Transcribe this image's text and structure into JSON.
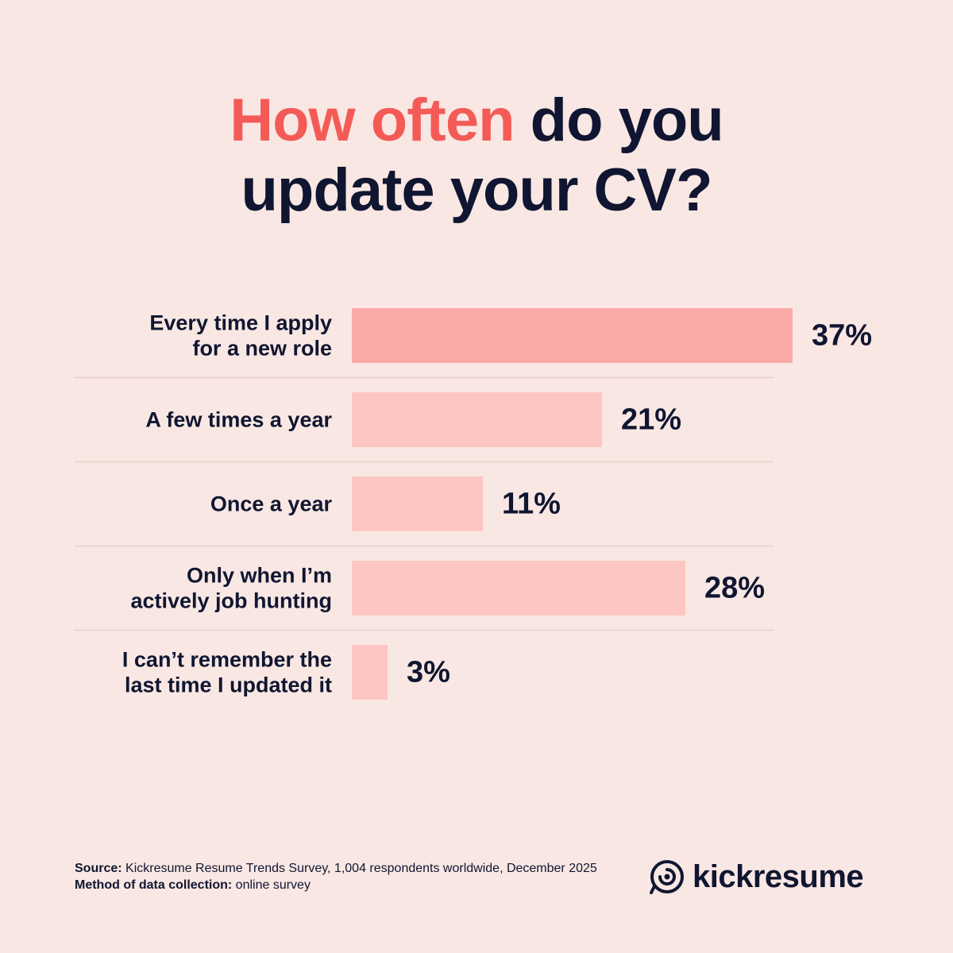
{
  "title": {
    "part1": "How often",
    "part2": "do you",
    "part3": "update your CV?"
  },
  "colors": {
    "background": "#f9e7e3",
    "title_accent": "#f45b57",
    "text": "#101631",
    "bar_highlight": "#fca9a9",
    "bar_default": "#fdc6c3",
    "divider": "#e8cfca"
  },
  "chart_data": {
    "type": "bar",
    "orientation": "horizontal",
    "categories": [
      [
        "Every time I apply",
        "for a new role"
      ],
      [
        "A few times a year"
      ],
      [
        "Once a year"
      ],
      [
        "Only when I’m",
        "actively job hunting"
      ],
      [
        "I can’t remember the",
        "last time I updated it"
      ]
    ],
    "values": [
      37,
      21,
      11,
      28,
      3
    ],
    "value_labels": [
      "37%",
      "21%",
      "11%",
      "28%",
      "3%"
    ],
    "highlight_index": 0,
    "grid": false
  },
  "footer": {
    "source_label": "Source:",
    "source_text": " Kickresume Resume Trends Survey, 1,004 respondents worldwide, December 2025",
    "method_label": "Method of data collection:",
    "method_text": " online survey"
  },
  "brand": {
    "name": "kickresume",
    "icon": "chameleon-logo-icon"
  }
}
